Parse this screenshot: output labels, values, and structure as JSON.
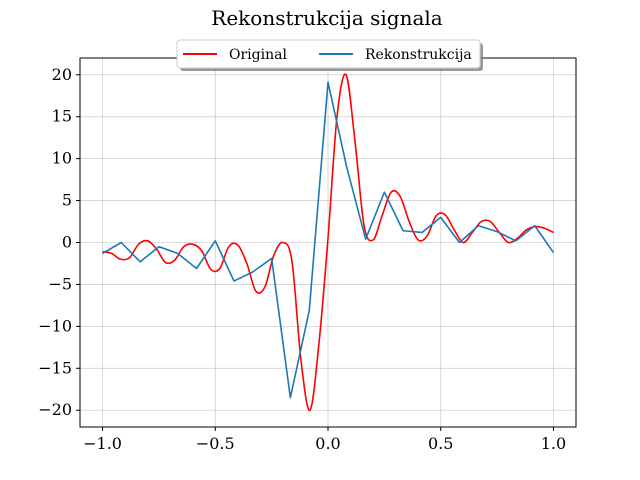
{
  "chart_data": {
    "type": "line",
    "title": "Rekonstrukcija signala",
    "xlabel": "",
    "ylabel": "",
    "xlim": [
      -1.1,
      1.1
    ],
    "ylim": [
      -22,
      22
    ],
    "x_ticks": [
      -1.0,
      -0.5,
      0.0,
      0.5,
      1.0
    ],
    "x_tick_labels": [
      "−1.0",
      "−0.5",
      "0.0",
      "0.5",
      "1.0"
    ],
    "y_ticks": [
      -20,
      -15,
      -10,
      -5,
      0,
      5,
      10,
      15,
      20
    ],
    "y_tick_labels": [
      "−20",
      "−15",
      "−10",
      "−5",
      "0",
      "5",
      "10",
      "15",
      "20"
    ],
    "grid": true,
    "legend": {
      "placement": "top-center",
      "ncol": 2
    },
    "series": [
      {
        "name": "Original",
        "color": "#ff0000",
        "x": [
          -1.0,
          -0.96,
          -0.92,
          -0.88,
          -0.84,
          -0.8,
          -0.76,
          -0.72,
          -0.68,
          -0.64,
          -0.6,
          -0.56,
          -0.52,
          -0.48,
          -0.44,
          -0.4,
          -0.36,
          -0.32,
          -0.28,
          -0.24,
          -0.2,
          -0.16,
          -0.12,
          -0.08,
          -0.04,
          0.0,
          0.04,
          0.08,
          0.12,
          0.16,
          0.2,
          0.24,
          0.28,
          0.32,
          0.36,
          0.4,
          0.44,
          0.48,
          0.52,
          0.56,
          0.6,
          0.64,
          0.68,
          0.72,
          0.76,
          0.8,
          0.84,
          0.88,
          0.92,
          0.96,
          1.0
        ],
        "y": [
          -1.1,
          -1.3,
          -2.0,
          -1.8,
          -0.2,
          0.2,
          -0.8,
          -2.4,
          -2.1,
          -0.5,
          -0.2,
          -1.0,
          -3.2,
          -3.1,
          -0.5,
          -0.3,
          -2.5,
          -5.8,
          -5.3,
          -1.5,
          0.0,
          -2.2,
          -14.0,
          -20.0,
          -12.0,
          0.5,
          15.0,
          20.0,
          12.0,
          2.0,
          0.3,
          3.2,
          6.0,
          5.5,
          2.5,
          0.3,
          0.8,
          3.2,
          3.3,
          1.5,
          0.0,
          1.2,
          2.5,
          2.5,
          1.2,
          0.0,
          0.5,
          1.5,
          1.9,
          1.7,
          1.2
        ]
      },
      {
        "name": "Rekonstrukcija",
        "color": "#1f77b4",
        "x": [
          -1.0,
          -0.917,
          -0.833,
          -0.75,
          -0.667,
          -0.583,
          -0.5,
          -0.417,
          -0.333,
          -0.25,
          -0.167,
          -0.083,
          0.0,
          0.083,
          0.167,
          0.25,
          0.333,
          0.417,
          0.5,
          0.583,
          0.667,
          0.75,
          0.833,
          0.917,
          1.0
        ],
        "y": [
          -1.3,
          0.0,
          -2.3,
          -0.5,
          -1.3,
          -3.1,
          0.2,
          -4.6,
          -3.5,
          -1.9,
          -18.5,
          -8.1,
          19.1,
          9.0,
          0.4,
          6.0,
          1.4,
          1.2,
          3.0,
          0.0,
          2.0,
          1.3,
          0.2,
          2.0,
          -1.2
        ]
      }
    ]
  }
}
